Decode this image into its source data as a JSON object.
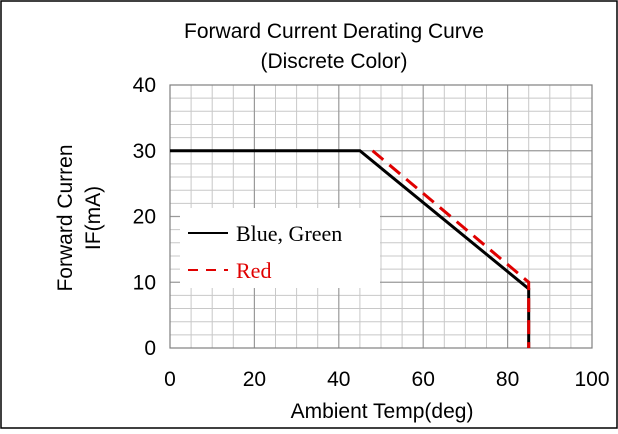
{
  "chart_data": {
    "type": "line",
    "title": "Forward Current Derating Curve",
    "subtitle": "(Discrete Color)",
    "xlabel": "Ambient Temp(deg)",
    "ylabel_line1": "Forward Curren",
    "ylabel_line2": "IF(mA)",
    "xlim": [
      0,
      100
    ],
    "ylim": [
      0,
      40
    ],
    "xticks": [
      "0",
      "20",
      "40",
      "60",
      "80",
      "100"
    ],
    "yticks": [
      "0",
      "10",
      "20",
      "30",
      "40"
    ],
    "grid": true,
    "legend_position": "left-middle",
    "series": [
      {
        "name": "Blue, Green",
        "legend_label": "Blue, Green",
        "color": "#000000",
        "style": "solid",
        "x": [
          0,
          45,
          85,
          85
        ],
        "y": [
          30,
          30,
          9,
          0
        ]
      },
      {
        "name": "Red",
        "legend_label": "Red",
        "color": "#e00000",
        "style": "dashed",
        "x": [
          48,
          85,
          85
        ],
        "y": [
          30,
          10,
          0
        ]
      }
    ]
  }
}
